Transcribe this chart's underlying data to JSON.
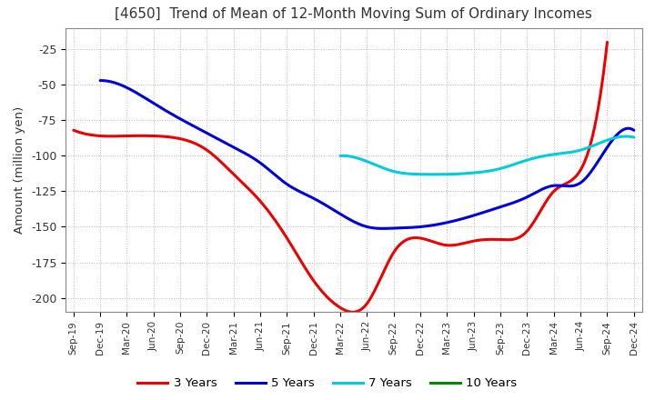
{
  "title": "[4650]  Trend of Mean of 12-Month Moving Sum of Ordinary Incomes",
  "ylabel": "Amount (million yen)",
  "background_color": "#ffffff",
  "plot_bg_color": "#ffffff",
  "grid_color": "#aaaaaa",
  "x_labels": [
    "Sep-19",
    "Dec-19",
    "Mar-20",
    "Jun-20",
    "Sep-20",
    "Dec-20",
    "Mar-21",
    "Jun-21",
    "Sep-21",
    "Dec-21",
    "Mar-22",
    "Jun-22",
    "Sep-22",
    "Dec-22",
    "Mar-23",
    "Jun-23",
    "Sep-23",
    "Dec-23",
    "Mar-24",
    "Jun-24",
    "Sep-24",
    "Dec-24"
  ],
  "ylim": [
    -210,
    -10
  ],
  "yticks": [
    -200,
    -175,
    -150,
    -125,
    -100,
    -75,
    -50,
    -25
  ],
  "series": {
    "3 Years": {
      "color": "#ee0000",
      "data_x": [
        0,
        1,
        2,
        3,
        4,
        5,
        6,
        7,
        8,
        9,
        10,
        11,
        12,
        13,
        14,
        15,
        16,
        17,
        18,
        19,
        20
      ],
      "data_y": [
        -82,
        -86,
        -86,
        -86,
        -88,
        -96,
        -113,
        -132,
        -158,
        -188,
        -207,
        -204,
        -168,
        -158,
        -163,
        -160,
        -159,
        -153,
        -125,
        -110,
        -20
      ]
    },
    "5 Years": {
      "color": "#0000dd",
      "data_x": [
        1,
        2,
        3,
        4,
        5,
        6,
        7,
        8,
        9,
        10,
        11,
        12,
        13,
        14,
        15,
        16,
        17,
        18,
        19,
        20,
        21
      ],
      "data_y": [
        -47,
        -52,
        -63,
        -74,
        -84,
        -94,
        -105,
        -120,
        -130,
        -141,
        -150,
        -151,
        -150,
        -147,
        -142,
        -136,
        -129,
        -121,
        -119,
        -94,
        -82
      ]
    },
    "7 Years": {
      "color": "#00ccdd",
      "data_x": [
        10,
        11,
        12,
        13,
        14,
        15,
        16,
        17,
        18,
        19,
        20,
        21
      ],
      "data_y": [
        -100,
        -104,
        -111,
        -113,
        -113,
        -112,
        -109,
        -103,
        -99,
        -96,
        -89,
        -87
      ]
    },
    "10 Years": {
      "color": "#008800",
      "data_x": [],
      "data_y": []
    }
  },
  "legend_items": [
    {
      "label": "3 Years",
      "color": "#ee0000"
    },
    {
      "label": "5 Years",
      "color": "#0000dd"
    },
    {
      "label": "7 Years",
      "color": "#00ccdd"
    },
    {
      "label": "10 Years",
      "color": "#008800"
    }
  ]
}
